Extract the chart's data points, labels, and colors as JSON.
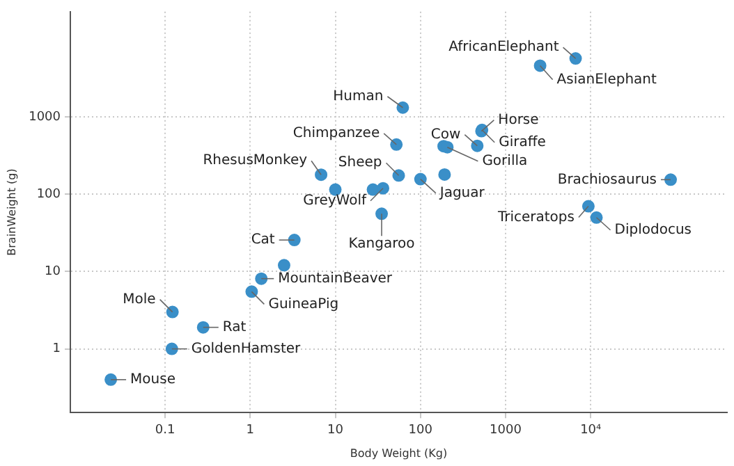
{
  "chart_data": {
    "type": "scatter",
    "xlabel": "Body Weight (Kg)",
    "ylabel": "BrainWeight (g)",
    "log": "xy",
    "grid": true,
    "legend": false,
    "marker": "circle",
    "xlim": [
      0.0077,
      400000
    ],
    "ylim": [
      0.15,
      23000
    ],
    "xticks": [
      0.1,
      1,
      10,
      100,
      1000,
      {
        "value": 10000,
        "label": "10⁴"
      }
    ],
    "yticks": [
      1,
      10,
      100,
      1000
    ],
    "series": [
      {
        "color": "#3a8fc8",
        "x": [
          1.35,
          465,
          36.33,
          27.66,
          1.04,
          11700,
          2547,
          187.1,
          521,
          10,
          3.3,
          529,
          207,
          62,
          6654,
          9400,
          6.8,
          35,
          0.12,
          0.023,
          2.5,
          55.5,
          100,
          52.16,
          0.28,
          87000,
          0.122,
          192
        ],
        "values": [
          8.1,
          423,
          119.5,
          115,
          5.5,
          50,
          4603,
          419,
          655,
          115,
          25.6,
          680,
          406,
          1320,
          5712,
          70,
          179,
          56,
          1,
          0.4,
          12.1,
          175,
          157,
          440,
          1.9,
          154.5,
          3,
          180
        ]
      }
    ],
    "annotations": [
      {
        "text": "AfricanElephant",
        "x": 6654,
        "y": 5712
      },
      {
        "text": "AsianElephant",
        "x": 2547,
        "y": 4603
      },
      {
        "text": "Human",
        "x": 62,
        "y": 1320
      },
      {
        "text": "Horse",
        "x": 521,
        "y": 655
      },
      {
        "text": "Chimpanzee",
        "x": 52.16,
        "y": 440
      },
      {
        "text": "Cow",
        "x": 465,
        "y": 423
      },
      {
        "text": "Giraffe",
        "x": 529,
        "y": 680
      },
      {
        "text": "Gorilla",
        "x": 207,
        "y": 406
      },
      {
        "text": "Sheep",
        "x": 55.5,
        "y": 175
      },
      {
        "text": "RhesusMonkey",
        "x": 6.8,
        "y": 179
      },
      {
        "text": "GreyWolf",
        "x": 36.33,
        "y": 119.5
      },
      {
        "text": "Jaguar",
        "x": 100,
        "y": 157
      },
      {
        "text": "Brachiosaurus",
        "x": 87000,
        "y": 154.5
      },
      {
        "text": "Kangaroo",
        "x": 35,
        "y": 56
      },
      {
        "text": "Triceratops",
        "x": 9400,
        "y": 70
      },
      {
        "text": "Diplodocus",
        "x": 11700,
        "y": 50
      },
      {
        "text": "Cat",
        "x": 3.3,
        "y": 25.6
      },
      {
        "text": "MountainBeaver",
        "x": 1.35,
        "y": 8.1
      },
      {
        "text": "GuineaPig",
        "x": 1.04,
        "y": 5.5
      },
      {
        "text": "Mole",
        "x": 0.122,
        "y": 3
      },
      {
        "text": "Rat",
        "x": 0.28,
        "y": 1.9
      },
      {
        "text": "GoldenHamster",
        "x": 0.12,
        "y": 1
      },
      {
        "text": "Mouse",
        "x": 0.023,
        "y": 0.4
      }
    ]
  }
}
